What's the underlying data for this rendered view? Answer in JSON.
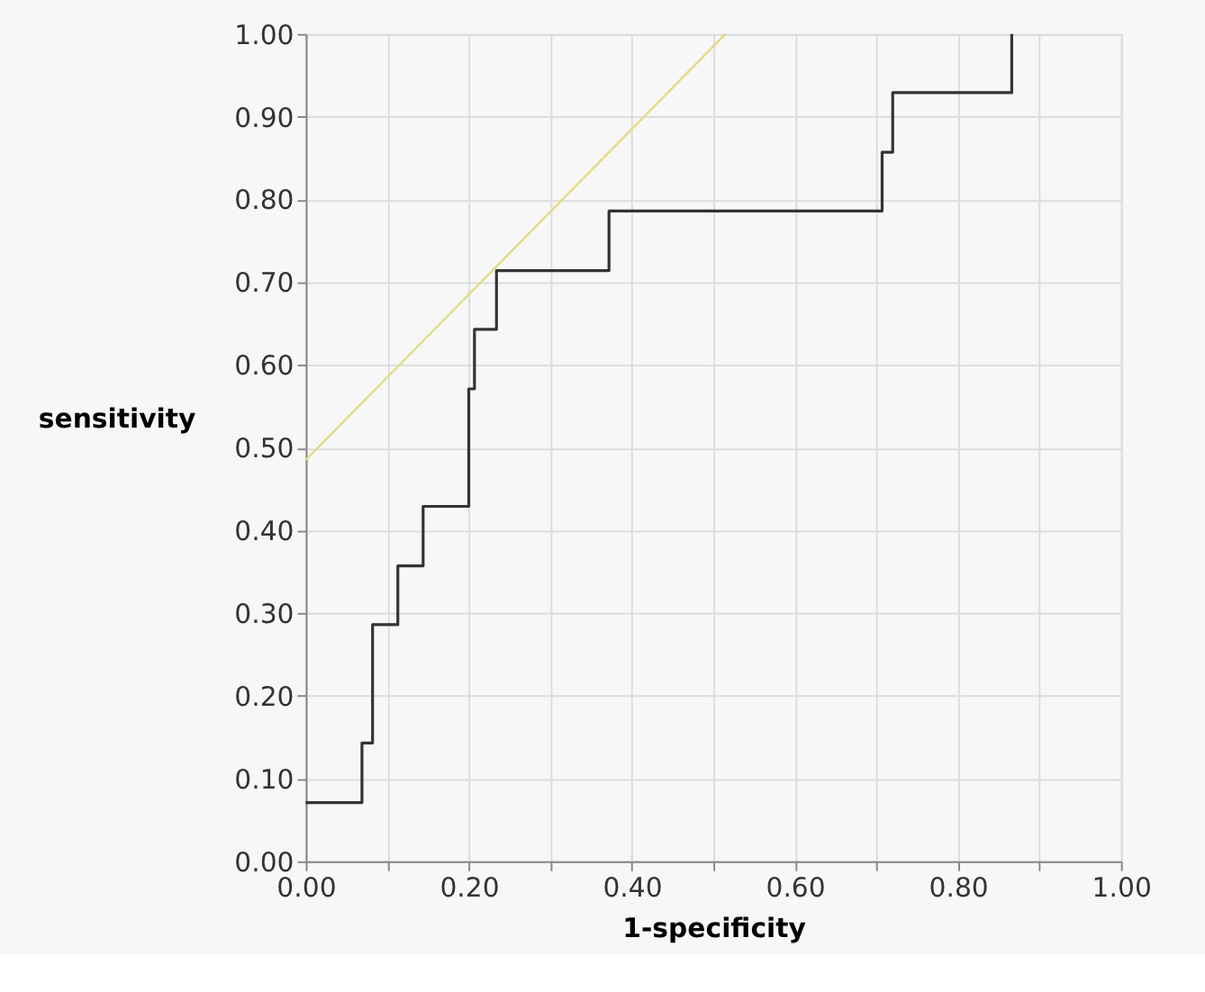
{
  "chart_data": {
    "type": "step",
    "xlabel": "1-specificity",
    "ylabel": "sensitivity",
    "xlim": [
      0,
      1
    ],
    "ylim": [
      0,
      1
    ],
    "xticks": [
      {
        "value": 0,
        "label": "0.00"
      },
      {
        "value": 0.1,
        "label": null
      },
      {
        "value": 0.2,
        "label": "0.20"
      },
      {
        "value": 0.3,
        "label": null
      },
      {
        "value": 0.4,
        "label": "0.40"
      },
      {
        "value": 0.5,
        "label": null
      },
      {
        "value": 0.6,
        "label": "0.60"
      },
      {
        "value": 0.7,
        "label": null
      },
      {
        "value": 0.8,
        "label": "0.80"
      },
      {
        "value": 0.9,
        "label": null
      },
      {
        "value": 1,
        "label": "1.00"
      }
    ],
    "yticks": [
      {
        "value": 0,
        "label": "0.00"
      },
      {
        "value": 0.1,
        "label": "0.10"
      },
      {
        "value": 0.2,
        "label": "0.20"
      },
      {
        "value": 0.3,
        "label": "0.30"
      },
      {
        "value": 0.4,
        "label": "0.40"
      },
      {
        "value": 0.5,
        "label": "0.50"
      },
      {
        "value": 0.6,
        "label": "0.60"
      },
      {
        "value": 0.7,
        "label": "0.70"
      },
      {
        "value": 0.8,
        "label": "0.80"
      },
      {
        "value": 0.9,
        "label": "0.90"
      },
      {
        "value": 1,
        "label": "1.00"
      }
    ],
    "grid": true,
    "marker": "none",
    "line_style": "solid",
    "series": [
      {
        "color": "#333333",
        "x": [
          0,
          0.069,
          0.082,
          0.113,
          0.144,
          0.2,
          0.207,
          0.234,
          0.372,
          0.707,
          0.72,
          0.866
        ],
        "values": [
          0.071,
          0.143,
          0.286,
          0.357,
          0.429,
          0.571,
          0.643,
          0.714,
          0.786,
          0.857,
          0.929,
          1.0
        ]
      },
      {
        "type": "line",
        "color": "#e2dc82",
        "x": [
          0,
          0.515
        ],
        "values": [
          0.485,
          1.0
        ]
      }
    ]
  }
}
